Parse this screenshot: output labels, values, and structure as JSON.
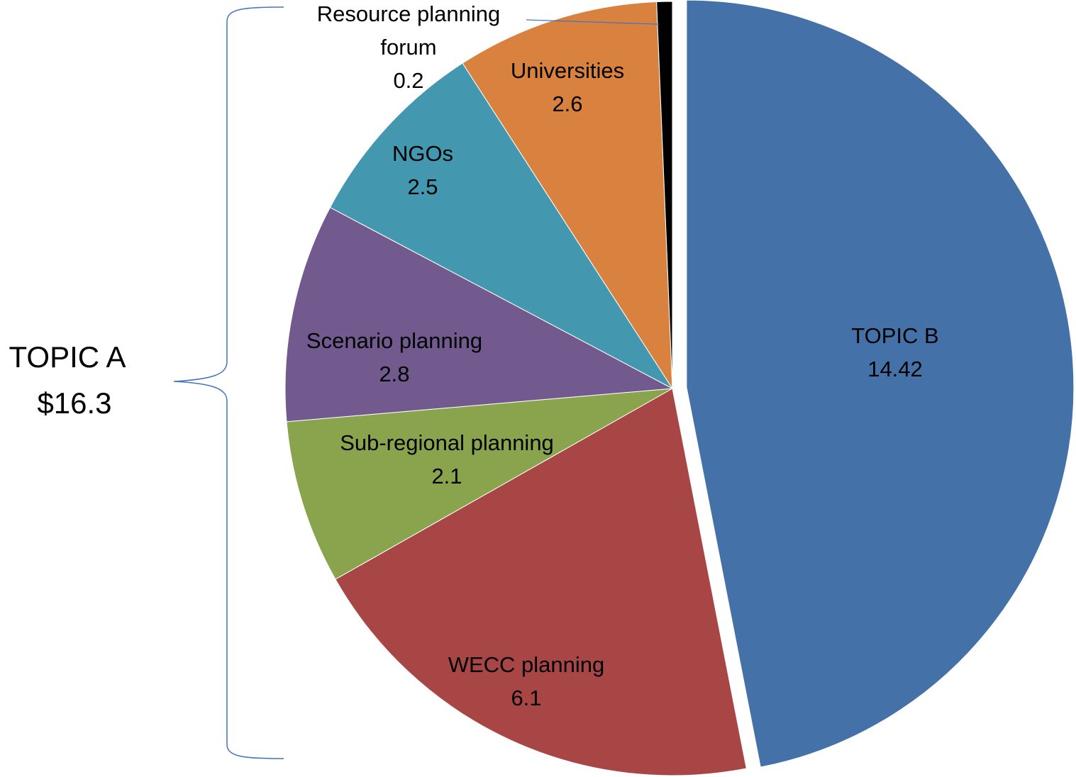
{
  "chart_data": {
    "type": "pie",
    "slices": [
      {
        "label": "TOPIC B",
        "value": 14.42,
        "value_text": "14.42",
        "color": "#4472A8",
        "exploded": true
      },
      {
        "label": "WECC planning",
        "value": 6.1,
        "value_text": "6.1",
        "color": "#A84646"
      },
      {
        "label": "Sub-regional planning",
        "value": 2.1,
        "value_text": "2.1",
        "color": "#8AA44E"
      },
      {
        "label": "Scenario planning",
        "value": 2.8,
        "value_text": "2.8",
        "color": "#725A8E"
      },
      {
        "label": "NGOs",
        "value": 2.5,
        "value_text": "2.5",
        "color": "#4397AF"
      },
      {
        "label": "Universities",
        "value": 2.6,
        "value_text": "2.6",
        "color": "#D9823F"
      },
      {
        "label": "Resource planning forum",
        "label_lines": [
          "Resource planning",
          "forum"
        ],
        "value": 0.2,
        "value_text": "0.2",
        "color": "#000000"
      }
    ],
    "bracket": {
      "label": "TOPIC A",
      "total_text": "$16.3",
      "color": "#4472C4"
    }
  }
}
